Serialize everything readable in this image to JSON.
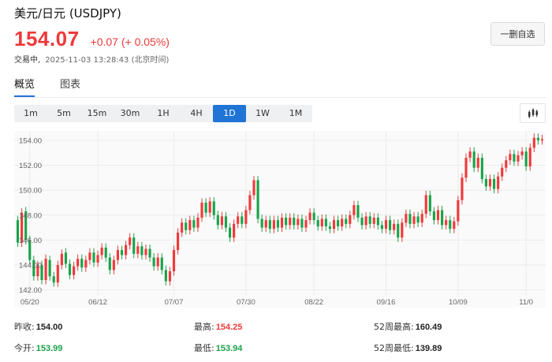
{
  "header": {
    "title": "美元/日元 (USDJPY)",
    "price": "154.07",
    "change": "+0.07 (+ 0.05%)",
    "status": "交易中,",
    "timestamp": "2025-11-03 13:28:43 (北京时间)",
    "remove_watchlist_label": "一删自选"
  },
  "tabs": [
    {
      "label": "概览"
    },
    {
      "label": "图表"
    }
  ],
  "intervals": [
    {
      "label": "1m"
    },
    {
      "label": "5m"
    },
    {
      "label": "15m"
    },
    {
      "label": "30m"
    },
    {
      "label": "1H"
    },
    {
      "label": "4H"
    },
    {
      "label": "1D"
    },
    {
      "label": "1W"
    },
    {
      "label": "1M"
    }
  ],
  "active_interval": "1D",
  "colors": {
    "up": "#ee3a3a",
    "down": "#1aa34a",
    "accent": "#1f74d5"
  },
  "stats": {
    "prev_close_label": "昨收:",
    "prev_close": "154.00",
    "high_label": "最高:",
    "high": "154.25",
    "wk52_high_label": "52周最高:",
    "wk52_high": "160.49",
    "open_label": "今开:",
    "open": "153.99",
    "low_label": "最低:",
    "low": "153.94",
    "wk52_low_label": "52周最低:",
    "wk52_low": "139.89"
  },
  "chart_data": {
    "type": "candlestick",
    "y_ticks": [
      "154.00",
      "152.00",
      "150.00",
      "148.00",
      "146.00",
      "144.00",
      "142.00"
    ],
    "y_tick_values": [
      154,
      152,
      150,
      148,
      146,
      144,
      142
    ],
    "ylim": [
      141.6,
      154.5
    ],
    "x_ticks": [
      "05/20",
      "06/12",
      "07/07",
      "07/30",
      "08/22",
      "09/16",
      "10/09",
      "11/0"
    ],
    "x_tick_index": [
      3,
      20,
      39,
      57,
      74,
      92,
      110,
      127
    ],
    "grid": true,
    "series": [
      {
        "o": 147.6,
        "c": 145.8
      },
      {
        "o": 145.8,
        "c": 148.2
      },
      {
        "o": 148.3,
        "c": 146.0
      },
      {
        "o": 146.0,
        "c": 144.4
      },
      {
        "o": 144.4,
        "c": 143.1
      },
      {
        "o": 143.1,
        "c": 144.0
      },
      {
        "o": 144.0,
        "c": 142.8
      },
      {
        "o": 142.8,
        "c": 144.5
      },
      {
        "o": 144.4,
        "c": 143.1
      },
      {
        "o": 143.1,
        "c": 142.6
      },
      {
        "o": 142.6,
        "c": 144.0
      },
      {
        "o": 144.0,
        "c": 144.9
      },
      {
        "o": 145.0,
        "c": 144.1
      },
      {
        "o": 144.1,
        "c": 143.2
      },
      {
        "o": 143.2,
        "c": 143.9
      },
      {
        "o": 143.9,
        "c": 144.5
      },
      {
        "o": 144.5,
        "c": 143.8
      },
      {
        "o": 143.8,
        "c": 144.4
      },
      {
        "o": 144.4,
        "c": 145.0
      },
      {
        "o": 145.0,
        "c": 144.2
      },
      {
        "o": 144.2,
        "c": 144.8
      },
      {
        "o": 144.8,
        "c": 145.4
      },
      {
        "o": 145.4,
        "c": 144.6
      },
      {
        "o": 144.6,
        "c": 143.6
      },
      {
        "o": 143.6,
        "c": 144.4
      },
      {
        "o": 144.4,
        "c": 145.2
      },
      {
        "o": 145.2,
        "c": 144.8
      },
      {
        "o": 144.8,
        "c": 145.6
      },
      {
        "o": 145.6,
        "c": 146.2
      },
      {
        "o": 146.2,
        "c": 144.9
      },
      {
        "o": 144.9,
        "c": 145.5
      },
      {
        "o": 145.5,
        "c": 144.8
      },
      {
        "o": 144.8,
        "c": 145.3
      },
      {
        "o": 145.3,
        "c": 144.6
      },
      {
        "o": 144.6,
        "c": 143.9
      },
      {
        "o": 143.9,
        "c": 144.6
      },
      {
        "o": 144.6,
        "c": 143.6
      },
      {
        "o": 143.6,
        "c": 142.7
      },
      {
        "o": 142.7,
        "c": 143.5
      },
      {
        "o": 143.5,
        "c": 145.2
      },
      {
        "o": 145.2,
        "c": 146.6
      },
      {
        "o": 146.6,
        "c": 147.4
      },
      {
        "o": 147.4,
        "c": 146.8
      },
      {
        "o": 146.8,
        "c": 147.6
      },
      {
        "o": 147.6,
        "c": 147.0
      },
      {
        "o": 147.0,
        "c": 147.8
      },
      {
        "o": 147.8,
        "c": 149.0
      },
      {
        "o": 149.0,
        "c": 148.2
      },
      {
        "o": 148.2,
        "c": 149.1
      },
      {
        "o": 149.1,
        "c": 148.0
      },
      {
        "o": 148.0,
        "c": 147.2
      },
      {
        "o": 147.2,
        "c": 147.9
      },
      {
        "o": 147.9,
        "c": 147.0
      },
      {
        "o": 147.0,
        "c": 146.2
      },
      {
        "o": 146.2,
        "c": 147.3
      },
      {
        "o": 147.3,
        "c": 147.9
      },
      {
        "o": 147.9,
        "c": 147.3
      },
      {
        "o": 147.3,
        "c": 148.4
      },
      {
        "o": 148.4,
        "c": 149.6
      },
      {
        "o": 149.6,
        "c": 150.8
      },
      {
        "o": 150.8,
        "c": 147.7
      },
      {
        "o": 147.7,
        "c": 147.0
      },
      {
        "o": 147.0,
        "c": 147.6
      },
      {
        "o": 147.6,
        "c": 146.9
      },
      {
        "o": 146.9,
        "c": 147.6
      },
      {
        "o": 147.6,
        "c": 147.0
      },
      {
        "o": 147.0,
        "c": 147.8
      },
      {
        "o": 147.8,
        "c": 147.2
      },
      {
        "o": 147.2,
        "c": 147.8
      },
      {
        "o": 147.8,
        "c": 147.2
      },
      {
        "o": 147.2,
        "c": 147.7
      },
      {
        "o": 147.7,
        "c": 147.0
      },
      {
        "o": 147.0,
        "c": 147.6
      },
      {
        "o": 147.6,
        "c": 148.2
      },
      {
        "o": 148.2,
        "c": 147.6
      },
      {
        "o": 147.6,
        "c": 147.1
      },
      {
        "o": 147.1,
        "c": 147.7
      },
      {
        "o": 147.7,
        "c": 147.1
      },
      {
        "o": 147.1,
        "c": 146.9
      },
      {
        "o": 146.9,
        "c": 147.6
      },
      {
        "o": 147.6,
        "c": 147.1
      },
      {
        "o": 147.1,
        "c": 147.7
      },
      {
        "o": 147.7,
        "c": 147.3
      },
      {
        "o": 147.3,
        "c": 148.0
      },
      {
        "o": 148.0,
        "c": 148.8
      },
      {
        "o": 148.8,
        "c": 147.8
      },
      {
        "o": 147.8,
        "c": 147.2
      },
      {
        "o": 147.2,
        "c": 147.9
      },
      {
        "o": 147.9,
        "c": 147.3
      },
      {
        "o": 147.3,
        "c": 147.8
      },
      {
        "o": 147.8,
        "c": 147.2
      },
      {
        "o": 147.2,
        "c": 146.9
      },
      {
        "o": 146.9,
        "c": 147.6
      },
      {
        "o": 147.6,
        "c": 146.8
      },
      {
        "o": 146.8,
        "c": 147.3
      },
      {
        "o": 147.3,
        "c": 146.2
      },
      {
        "o": 146.2,
        "c": 147.4
      },
      {
        "o": 147.4,
        "c": 148.1
      },
      {
        "o": 148.1,
        "c": 147.3
      },
      {
        "o": 147.3,
        "c": 147.9
      },
      {
        "o": 147.9,
        "c": 147.4
      },
      {
        "o": 147.4,
        "c": 148.1
      },
      {
        "o": 148.1,
        "c": 149.6
      },
      {
        "o": 149.6,
        "c": 148.3
      },
      {
        "o": 148.3,
        "c": 147.6
      },
      {
        "o": 147.6,
        "c": 148.4
      },
      {
        "o": 148.4,
        "c": 147.2
      },
      {
        "o": 147.2,
        "c": 147.6
      },
      {
        "o": 147.6,
        "c": 146.9
      },
      {
        "o": 146.9,
        "c": 147.5
      },
      {
        "o": 147.5,
        "c": 149.2
      },
      {
        "o": 149.2,
        "c": 151.0
      },
      {
        "o": 151.0,
        "c": 152.6
      },
      {
        "o": 152.6,
        "c": 153.1
      },
      {
        "o": 153.1,
        "c": 151.8
      },
      {
        "o": 151.8,
        "c": 152.6
      },
      {
        "o": 152.6,
        "c": 150.9
      },
      {
        "o": 150.9,
        "c": 150.3
      },
      {
        "o": 150.3,
        "c": 150.9
      },
      {
        "o": 150.9,
        "c": 150.1
      },
      {
        "o": 150.1,
        "c": 151.1
      },
      {
        "o": 151.1,
        "c": 151.8
      },
      {
        "o": 151.8,
        "c": 152.4
      },
      {
        "o": 152.4,
        "c": 152.9
      },
      {
        "o": 152.9,
        "c": 152.3
      },
      {
        "o": 152.3,
        "c": 152.8
      },
      {
        "o": 152.8,
        "c": 153.1
      },
      {
        "o": 153.1,
        "c": 151.9
      },
      {
        "o": 151.9,
        "c": 153.4
      },
      {
        "o": 153.4,
        "c": 154.2
      },
      {
        "o": 154.2,
        "c": 154.0
      },
      {
        "o": 154.0,
        "c": 154.1
      }
    ]
  }
}
